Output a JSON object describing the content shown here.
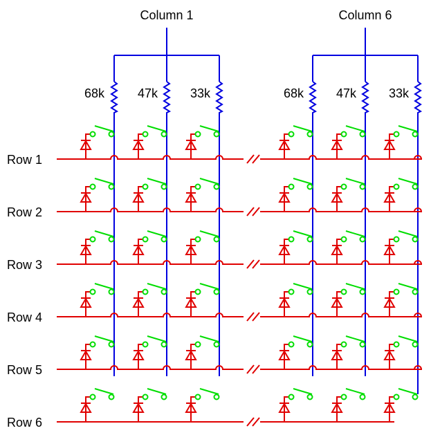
{
  "columns": [
    {
      "label": "Column 1",
      "resistors": [
        "68k",
        "47k",
        "33k"
      ]
    },
    {
      "label": "Column 6",
      "resistors": [
        "68k",
        "47k",
        "33k"
      ]
    }
  ],
  "rows": [
    "Row 1",
    "Row 2",
    "Row 3",
    "Row 4",
    "Row 5",
    "Row 6"
  ],
  "colors": {
    "row_wire": "#e00000",
    "column_wire": "#0000e0",
    "switch": "#00dd00",
    "text": "#000000"
  },
  "icons": {
    "resistor": "resistor-zigzag-icon",
    "diode": "diode-icon",
    "switch": "switch-icon",
    "break": "break-mark-icon",
    "crossover": "wire-hop-icon"
  }
}
